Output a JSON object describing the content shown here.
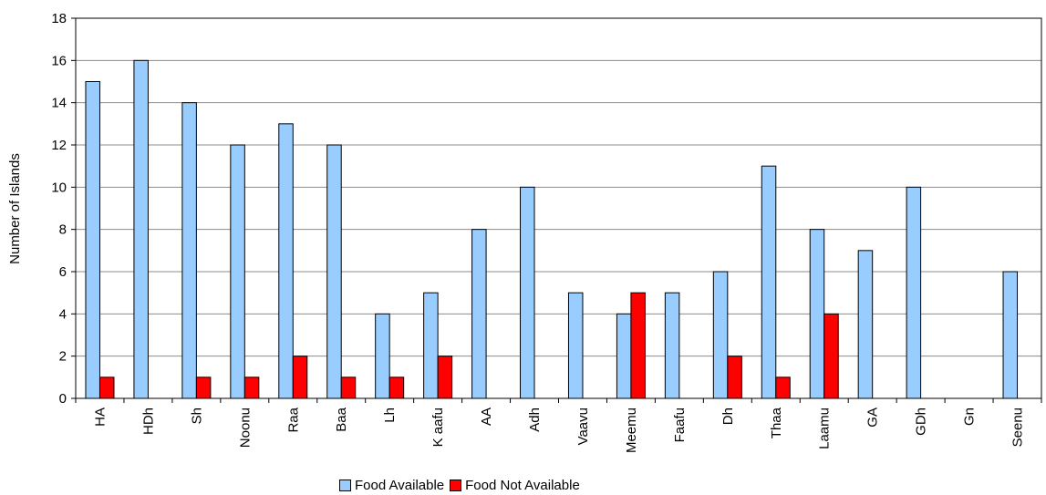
{
  "chart_data": {
    "type": "bar",
    "title": "",
    "xlabel": "",
    "ylabel": "Number of Islands",
    "ylim": [
      0,
      18
    ],
    "yticks": [
      0,
      2,
      4,
      6,
      8,
      10,
      12,
      14,
      16,
      18
    ],
    "grid": true,
    "legend_position": "bottom",
    "categories": [
      "HA",
      "HDh",
      "Sh",
      "Noonu",
      "Raa",
      "Baa",
      "Lh",
      "K aafu",
      "AA",
      "Adh",
      "Vaavu",
      "Meemu",
      "Faafu",
      "Dh",
      "Thaa",
      "Laamu",
      "GA",
      "GDh",
      "Gn",
      "Seenu"
    ],
    "series": [
      {
        "name": "Food Available",
        "color": "#99ccff",
        "values": [
          15,
          16,
          14,
          12,
          13,
          12,
          4,
          5,
          8,
          10,
          5,
          4,
          5,
          6,
          11,
          8,
          7,
          10,
          0,
          6
        ]
      },
      {
        "name": "Food Not Available",
        "color": "#ff0000",
        "values": [
          1,
          0,
          1,
          1,
          2,
          1,
          1,
          2,
          0,
          0,
          0,
          5,
          0,
          2,
          1,
          4,
          0,
          0,
          0,
          0
        ]
      }
    ]
  }
}
